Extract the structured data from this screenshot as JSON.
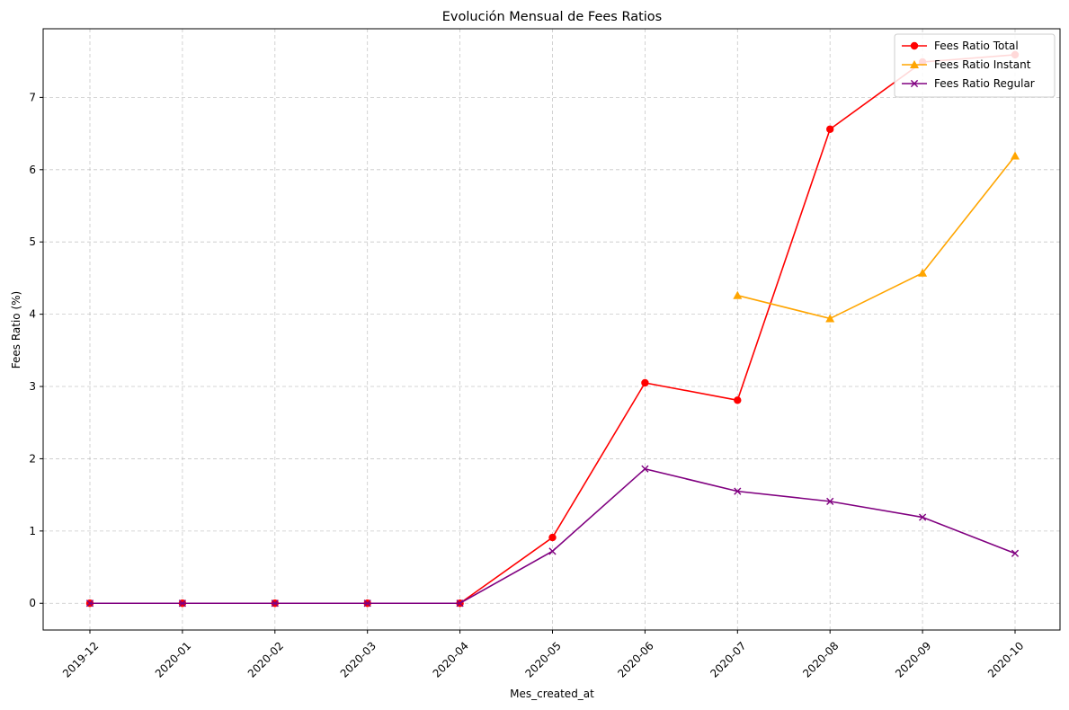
{
  "chart_data": {
    "type": "line",
    "title": "Evolución Mensual de Fees Ratios",
    "xlabel": "Mes_created_at",
    "ylabel": "Fees Ratio (%)",
    "categories": [
      "2019-12",
      "2020-01",
      "2020-02",
      "2020-03",
      "2020-04",
      "2020-05",
      "2020-06",
      "2020-07",
      "2020-08",
      "2020-09",
      "2020-10"
    ],
    "ylim": [
      -0.37,
      7.95
    ],
    "yticks": [
      0,
      1,
      2,
      3,
      4,
      5,
      6,
      7
    ],
    "grid": true,
    "legend_position": "top-right",
    "series": [
      {
        "name": "Fees Ratio Total",
        "color": "#ff0000",
        "marker": "circle",
        "values": [
          0,
          0,
          0,
          0,
          0,
          0.91,
          3.05,
          2.81,
          6.56,
          7.49,
          7.59
        ]
      },
      {
        "name": "Fees Ratio Instant",
        "color": "#ffa500",
        "marker": "triangle",
        "values": [
          null,
          null,
          null,
          null,
          null,
          null,
          null,
          4.26,
          3.94,
          4.57,
          6.19
        ]
      },
      {
        "name": "Fees Ratio Regular",
        "color": "#800080",
        "marker": "x",
        "values": [
          0,
          0,
          0,
          0,
          0,
          0.72,
          1.86,
          1.55,
          1.41,
          1.19,
          0.69
        ]
      }
    ]
  }
}
